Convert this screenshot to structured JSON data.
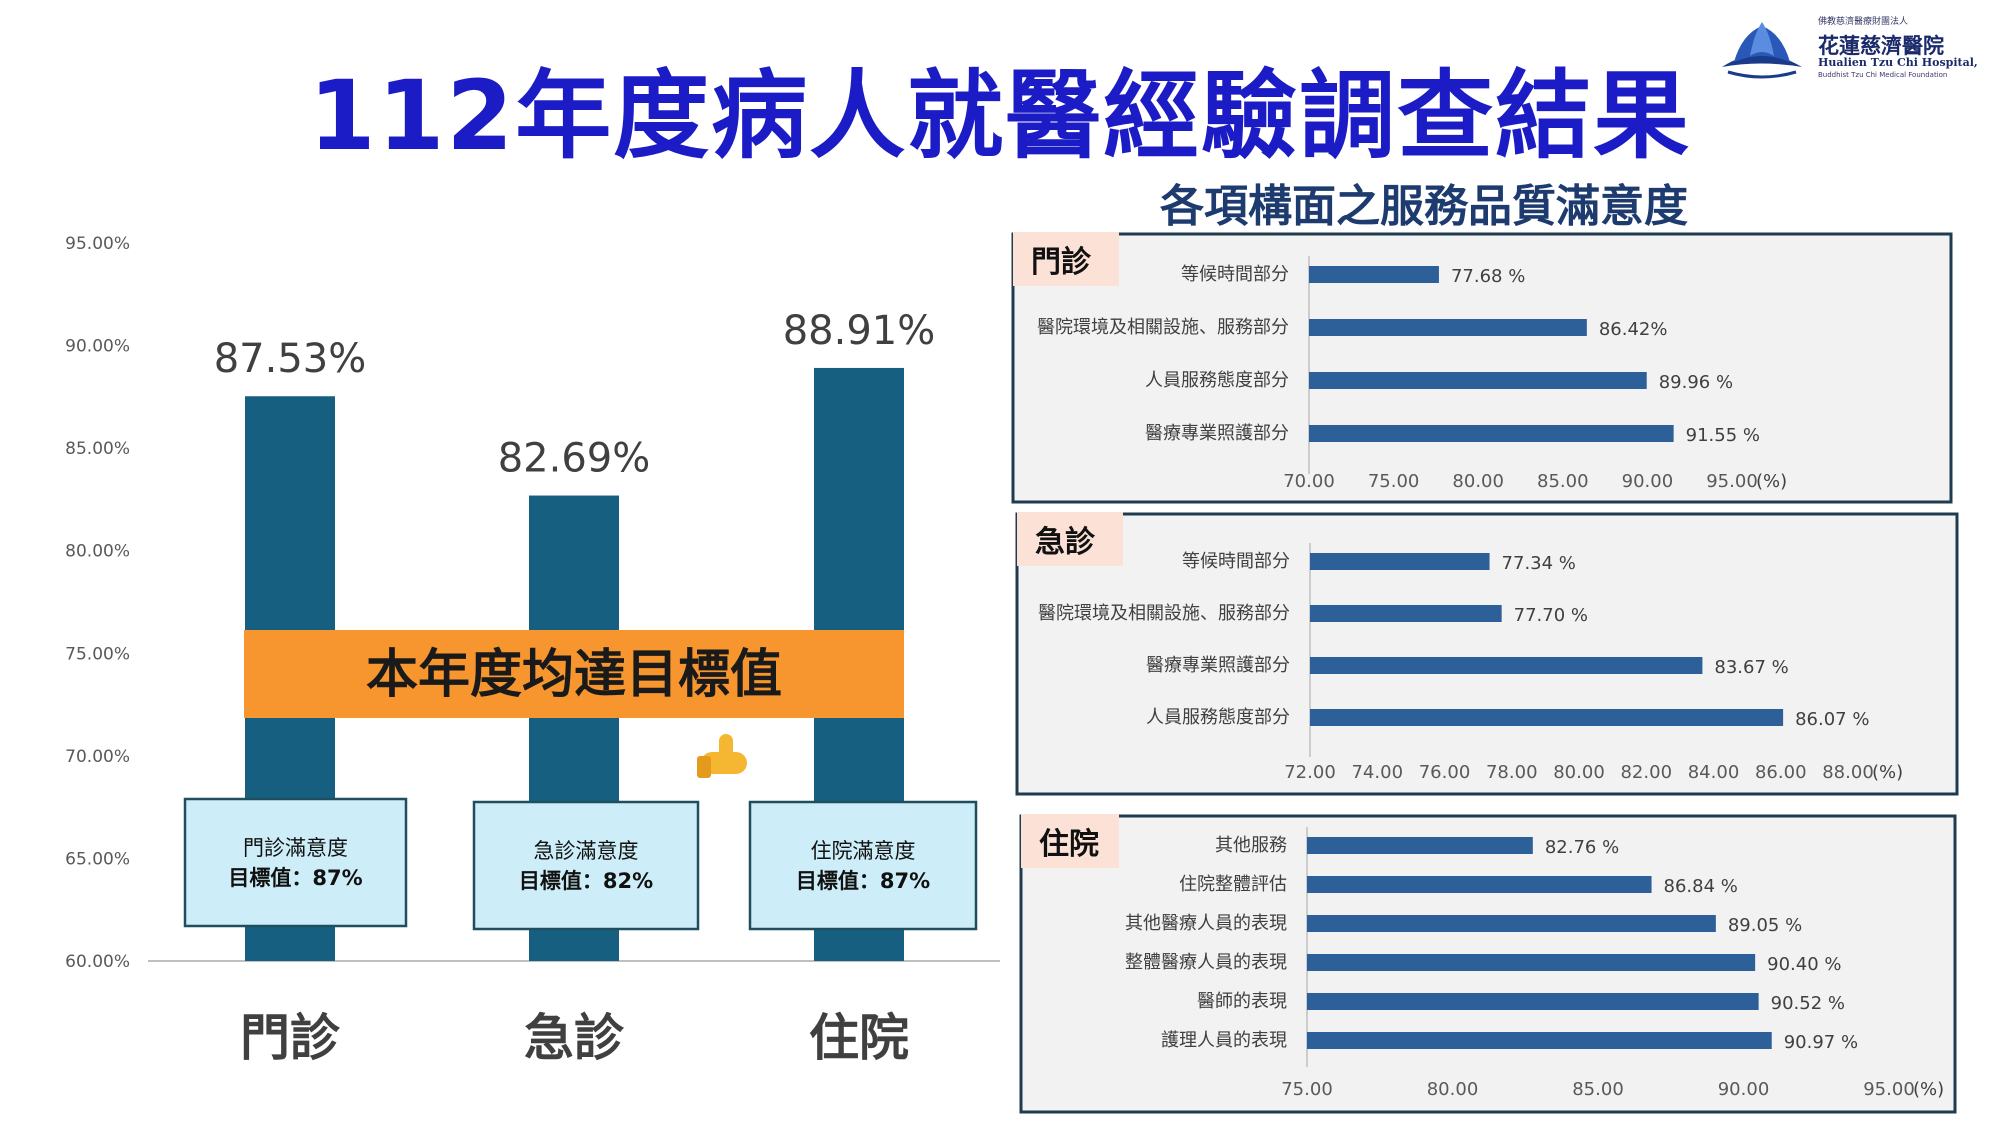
{
  "title": "112年度病人就醫經驗調查結果",
  "logo": {
    "top_text": "佛教慈濟醫療財團法人",
    "name_cn": "花蓮慈濟醫院",
    "name_en": "Hualien Tzu Chi Hospital,",
    "sub_en": "Buddhist Tzu Chi Medical Foundation"
  },
  "panel_heading": "各項構面之服務品質滿意度",
  "colors": {
    "title": "#1c1cc6",
    "bar_main": "#175f80",
    "bar_small": "#2d5f99",
    "banner": "#f7962e",
    "target_box": "#cdeef8",
    "panel_tab": "#fbe1d6",
    "panel_bg": "#f2f2f2",
    "panel_border": "#1f3b4d"
  },
  "main_chart": {
    "y_ticks": [
      "95.00%",
      "90.00%",
      "85.00%",
      "80.00%",
      "75.00%",
      "70.00%",
      "65.00%",
      "60.00%"
    ],
    "banner_text": "本年度均達目標值",
    "targets": [
      {
        "line1": "門診滿意度",
        "line2": "目標值：87%"
      },
      {
        "line1": "急診滿意度",
        "line2": "目標值：82%"
      },
      {
        "line1": "住院滿意度",
        "line2": "目標值：87%"
      }
    ],
    "thumb_icon": "thumbs-up-icon"
  },
  "chart_data": [
    {
      "type": "bar",
      "categories": [
        "門診",
        "急診",
        "住院"
      ],
      "values": [
        87.53,
        82.69,
        88.91
      ],
      "data_labels": [
        "87.53%",
        "82.69%",
        "88.91%"
      ],
      "ylim": [
        60,
        95
      ],
      "y_ticks": [
        95,
        90,
        85,
        80,
        75,
        70,
        65,
        60
      ],
      "grid": false
    },
    {
      "type": "bar",
      "orientation": "horizontal",
      "title": "門診",
      "categories": [
        "等候時間部分",
        "醫院環境及相關設施、服務部分",
        "人員服務態度部分",
        "醫療專業照護部分"
      ],
      "values": [
        77.68,
        86.42,
        89.96,
        91.55
      ],
      "data_labels": [
        "77.68 %",
        "86.42%",
        "89.96 %",
        "91.55 %"
      ],
      "xlim": [
        70,
        95
      ],
      "x_ticks": [
        "70.00",
        "75.00",
        "80.00",
        "85.00",
        "90.00",
        "95.00"
      ],
      "x_unit": "(%)"
    },
    {
      "type": "bar",
      "orientation": "horizontal",
      "title": "急診",
      "categories": [
        "等候時間部分",
        "醫院環境及相關設施、服務部分",
        "醫療專業照護部分",
        "人員服務態度部分"
      ],
      "values": [
        77.34,
        77.7,
        83.67,
        86.07
      ],
      "data_labels": [
        "77.34 %",
        "77.70 %",
        "83.67 %",
        "86.07 %"
      ],
      "xlim": [
        72,
        88
      ],
      "x_ticks": [
        "72.00",
        "74.00",
        "76.00",
        "78.00",
        "80.00",
        "82.00",
        "84.00",
        "86.00",
        "88.00"
      ],
      "x_unit": "(%)"
    },
    {
      "type": "bar",
      "orientation": "horizontal",
      "title": "住院",
      "categories": [
        "其他服務",
        "住院整體評估",
        "其他醫療人員的表現",
        "整體醫療人員的表現",
        "醫師的表現",
        "護理人員的表現"
      ],
      "values": [
        82.76,
        86.84,
        89.05,
        90.4,
        90.52,
        90.97
      ],
      "data_labels": [
        "82.76 %",
        "86.84 %",
        "89.05 %",
        "90.40 %",
        "90.52 %",
        "90.97 %"
      ],
      "xlim": [
        75,
        95
      ],
      "x_ticks": [
        "75.00",
        "80.00",
        "85.00",
        "90.00",
        "95.00"
      ],
      "x_unit": "(%)"
    }
  ]
}
